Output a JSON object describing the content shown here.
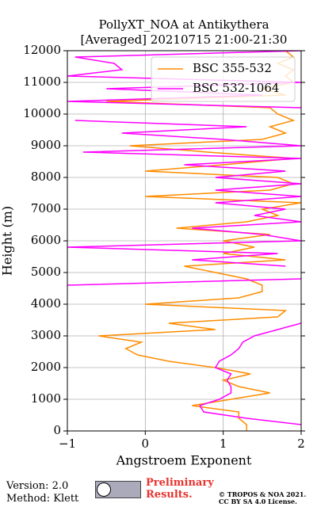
{
  "chart_data": {
    "type": "line",
    "orientation": "vertical",
    "title": "PollyXT_NOA at Antikythera",
    "subtitle": "[Averaged] 20210715 21:00-21:30",
    "x_label": "Angstroem Exponent",
    "y_label": "Height (m)",
    "y": [
      0,
      200,
      400,
      600,
      800,
      1000,
      1200,
      1400,
      1600,
      1800,
      2000,
      2200,
      2400,
      2600,
      2800,
      3000,
      3200,
      3400,
      3600,
      3800,
      4000,
      4200,
      4400,
      4600,
      4800,
      5000,
      5200,
      5400,
      5600,
      5800,
      6000,
      6200,
      6400,
      6600,
      6800,
      7000,
      7200,
      7400,
      7600,
      7800,
      8000,
      8200,
      8400,
      8600,
      8800,
      9000,
      9200,
      9400,
      9600,
      9800,
      10000,
      10200,
      10400,
      10600,
      10800,
      11000,
      11200,
      11400,
      11600,
      11800,
      12000
    ],
    "series": [
      {
        "name": "BSC 355-532",
        "color": "#ff8c00",
        "values": [
          1.3,
          1.3,
          1.2,
          1.2,
          0.6,
          1.1,
          1.6,
          1.2,
          1.0,
          1.35,
          0.9,
          0.3,
          -0.1,
          -0.25,
          -0.05,
          -0.6,
          0.9,
          0.3,
          1.7,
          1.8,
          0.0,
          1.2,
          1.5,
          1.5,
          1.3,
          0.9,
          0.5,
          1.8,
          1.0,
          1.4,
          1.0,
          1.6,
          0.4,
          1.3,
          1.7,
          1.5,
          2.0,
          0.0,
          1.6,
          1.9,
          1.7,
          0.0,
          1.0,
          1.9,
          0.8,
          -0.2,
          1.5,
          1.8,
          1.6,
          1.9,
          1.7,
          1.6,
          -0.5,
          1.8,
          1.5,
          1.9,
          1.8,
          1.9,
          1.7,
          1.9,
          1.8
        ]
      },
      {
        "name": "BSC 532-1064",
        "color": "#ff00ff",
        "values": [
          null,
          2.0,
          1.3,
          0.75,
          0.7,
          0.95,
          1.1,
          1.1,
          1.05,
          1.1,
          0.9,
          0.95,
          1.1,
          1.2,
          1.25,
          1.4,
          1.7,
          2.0,
          null,
          null,
          null,
          null,
          null,
          -1.0,
          2.0,
          null,
          1.8,
          0.6,
          1.7,
          -1.0,
          2.0,
          1.5,
          0.6,
          2.0,
          1.4,
          1.8,
          0.9,
          2.0,
          0.9,
          2.0,
          0.9,
          1.8,
          0.5,
          2.0,
          -0.8,
          2.0,
          1.0,
          -0.3,
          1.3,
          -0.9,
          null,
          2.0,
          -1.0,
          1.5,
          -0.5,
          2.0,
          -1.0,
          -0.3,
          -0.4,
          -0.9,
          2.0
        ]
      }
    ],
    "xlim": [
      -1,
      2
    ],
    "xticks": [
      {
        "value": -1,
        "label": "−1"
      },
      0,
      1,
      2
    ],
    "ylim": [
      0,
      12000
    ],
    "yticks": [
      0,
      1000,
      2000,
      3000,
      4000,
      5000,
      6000,
      7000,
      8000,
      9000,
      10000,
      11000,
      12000
    ],
    "grid": true,
    "legend": "upper right",
    "annotations": [
      "Version: 2.0",
      "Method: Klett",
      "Preliminary Results.",
      "© TROPOS & NOA 2021. CC BY SA 4.0 License."
    ]
  }
}
